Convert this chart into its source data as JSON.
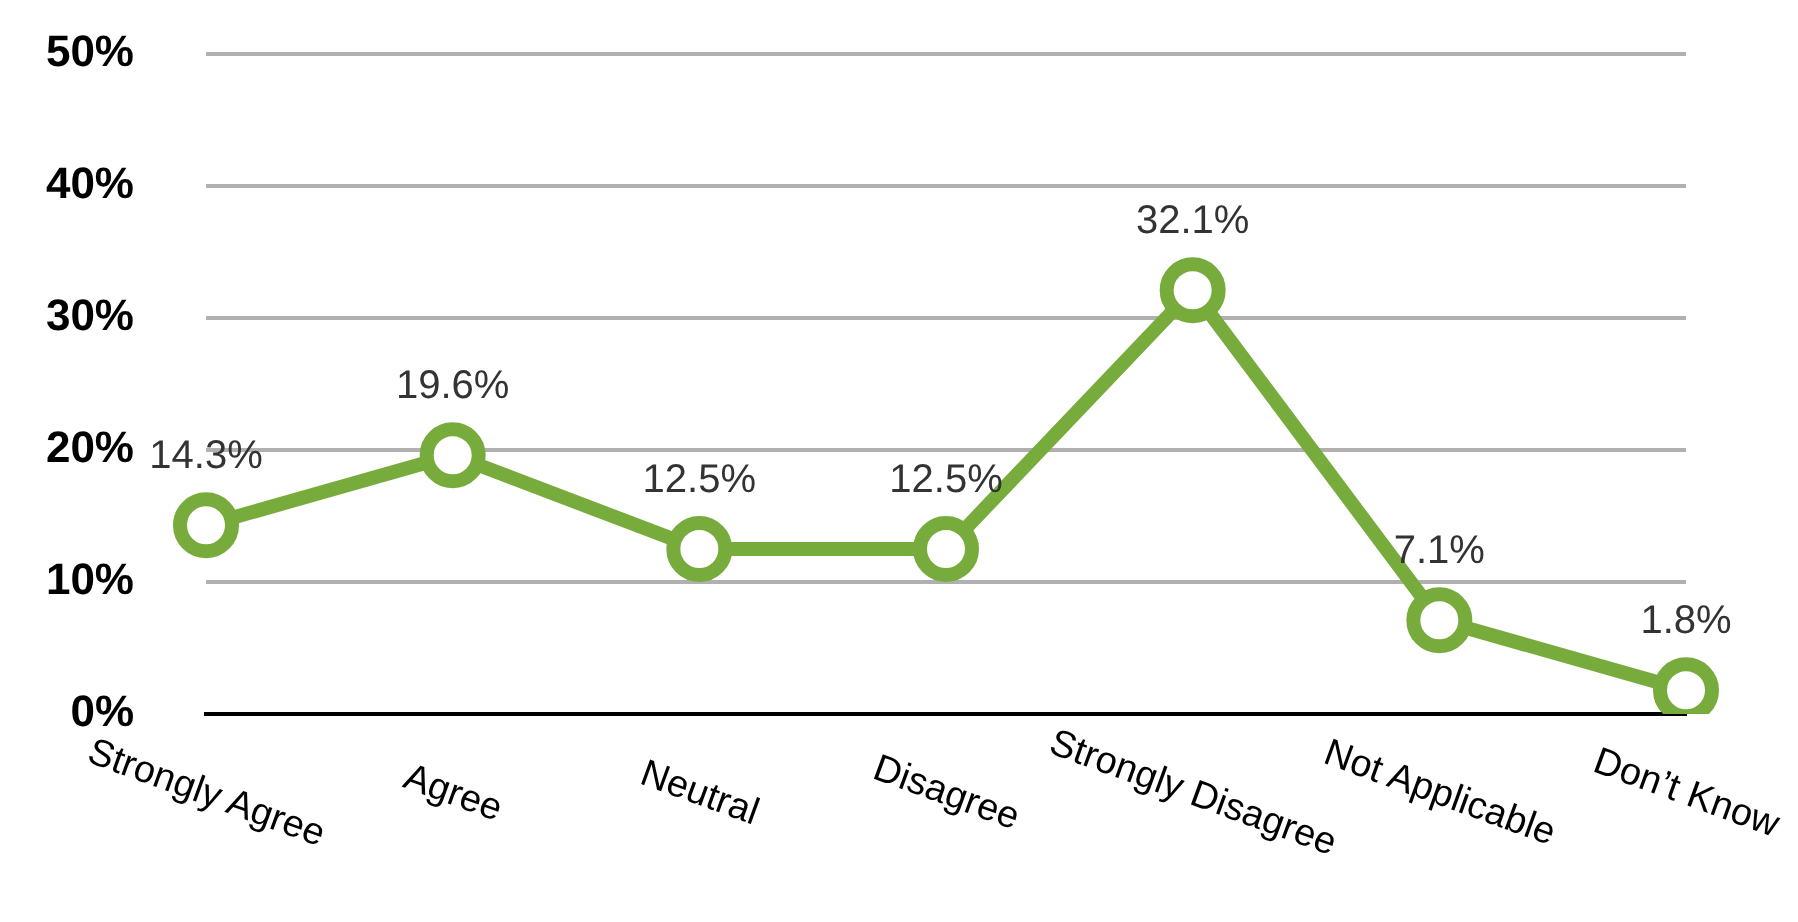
{
  "chart_data": {
    "type": "line",
    "categories": [
      "Strongly Agree",
      "Agree",
      "Neutral",
      "Disagree",
      "Strongly Disagree",
      "Not Applicable",
      "Don’t Know"
    ],
    "series": [
      {
        "color": "#77ac3c",
        "values": [
          14.3,
          19.6,
          12.5,
          12.5,
          32.1,
          7.1,
          1.8
        ],
        "value_labels": [
          "14.3%",
          "19.6%",
          "12.5%",
          "12.5%",
          "32.1%",
          "7.1%",
          "1.8%"
        ]
      }
    ],
    "ylim": [
      0,
      50
    ],
    "yticks": [
      {
        "value": 0,
        "label": "0%"
      },
      {
        "value": 10,
        "label": "10%"
      },
      {
        "value": 20,
        "label": "20%"
      },
      {
        "value": 30,
        "label": "30%"
      },
      {
        "value": 40,
        "label": "40%"
      },
      {
        "value": 50,
        "label": "50%"
      }
    ],
    "grid": "y",
    "legend": false,
    "marker": "circle",
    "line_style": "solid"
  }
}
